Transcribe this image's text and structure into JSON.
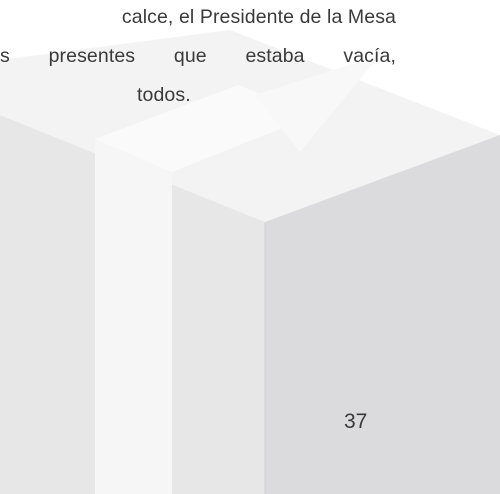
{
  "document": {
    "lines": [
      "calce, el Presidente de la Mesa",
      "s presentes que estaba vacía,",
      "todos."
    ],
    "page_number": "37"
  },
  "colors": {
    "text": "#3a3a3a",
    "box_top": "#f4f4f5",
    "box_left": "#e8e8e9",
    "box_right": "#dcdcde",
    "tape": "#f7f7f8"
  }
}
